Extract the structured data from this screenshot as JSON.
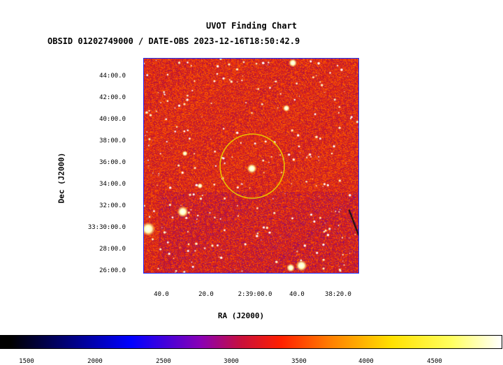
{
  "title": "UVOT Finding Chart",
  "subtitle": "OBSID 01202749000 / DATE-OBS 2023-12-16T18:50:42.9",
  "axes": {
    "y_label": "Dec (J2000)",
    "x_label": "RA (J2000)",
    "y_ticks": [
      "44:00.0",
      "42:00.0",
      "40:00.0",
      "38:00.0",
      "36:00.0",
      "34:00.0",
      "32:00.0",
      "33:30:00.0",
      "28:00.0",
      "26:00.0"
    ],
    "x_ticks": [
      "40.0",
      "20.0",
      "2:39:00.0",
      "40.0",
      "38:20.0"
    ]
  },
  "colorbar": {
    "ticks": [
      "1500",
      "2000",
      "2500",
      "3000",
      "3500",
      "4000",
      "4500"
    ]
  },
  "colors": {
    "plot_border": "#2030ff",
    "target_circle": "#e8c000",
    "background_red": "#c0202a"
  }
}
